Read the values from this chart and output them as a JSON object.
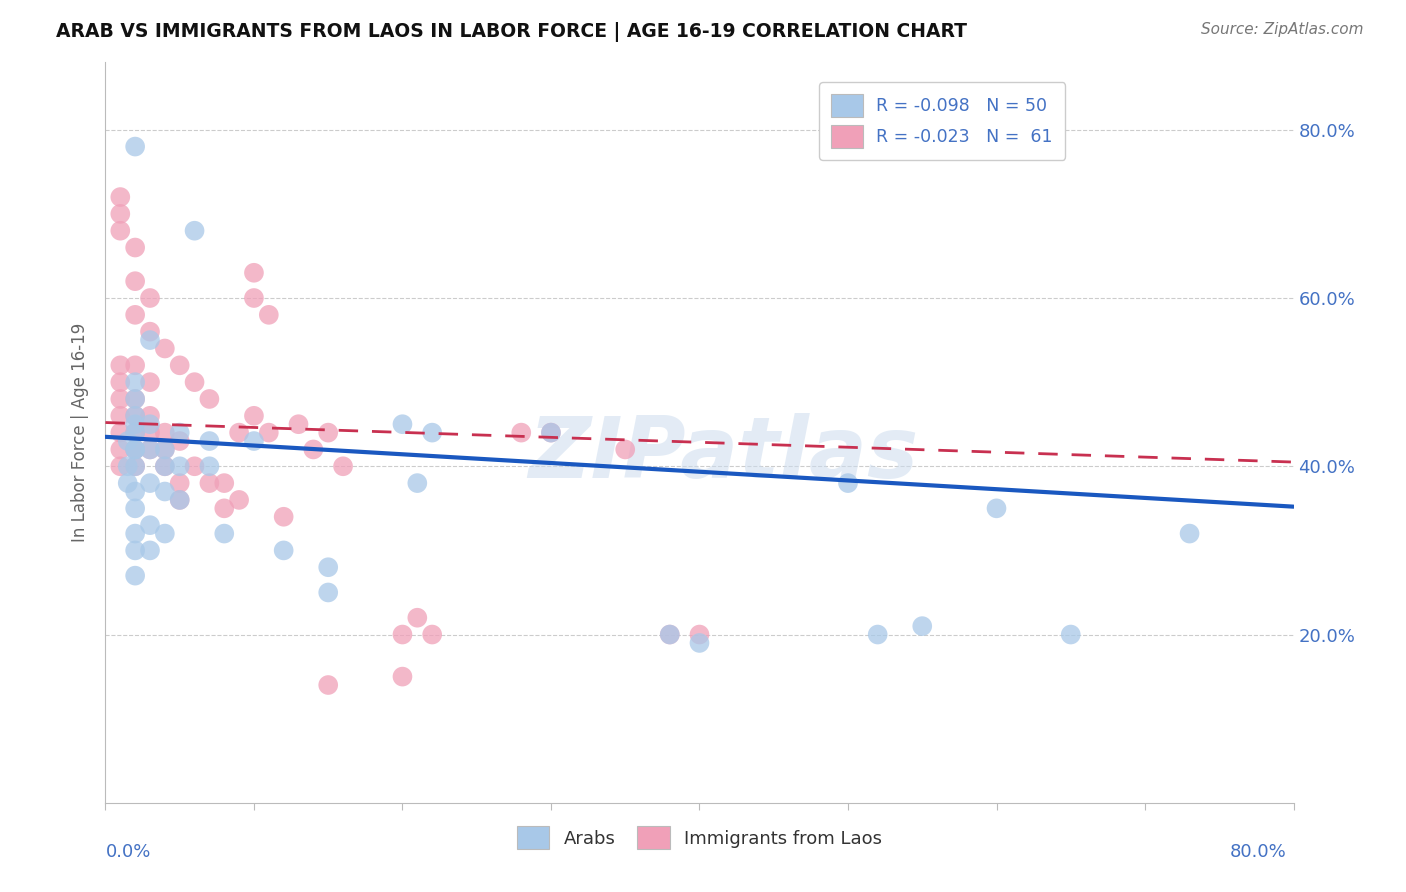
{
  "title": "ARAB VS IMMIGRANTS FROM LAOS IN LABOR FORCE | AGE 16-19 CORRELATION CHART",
  "source": "Source: ZipAtlas.com",
  "ylabel": "In Labor Force | Age 16-19",
  "xlim": [
    0.0,
    0.8
  ],
  "ylim": [
    0.0,
    0.88
  ],
  "watermark": "ZIPatlas",
  "arab_color": "#a8c8e8",
  "laos_color": "#f0a0b8",
  "trendline_arab_color": "#1a58c0",
  "trendline_laos_color": "#c83050",
  "arab_trendline": [
    0.0,
    0.8,
    0.435,
    0.352
  ],
  "laos_trendline": [
    0.0,
    0.8,
    0.452,
    0.405
  ],
  "arab_x": [
    0.02,
    0.02,
    0.02,
    0.02,
    0.02,
    0.02,
    0.02,
    0.02,
    0.02,
    0.03,
    0.03,
    0.03,
    0.03,
    0.04,
    0.04,
    0.04,
    0.05,
    0.05,
    0.06,
    0.07,
    0.07,
    0.08,
    0.1,
    0.12,
    0.15,
    0.15,
    0.2,
    0.21,
    0.22,
    0.3,
    0.38,
    0.4,
    0.5,
    0.52,
    0.55,
    0.6,
    0.65,
    0.73,
    0.015,
    0.015,
    0.015,
    0.02,
    0.02,
    0.03,
    0.04,
    0.05,
    0.02,
    0.03,
    0.02,
    0.02
  ],
  "arab_y": [
    0.42,
    0.4,
    0.37,
    0.35,
    0.32,
    0.3,
    0.27,
    0.45,
    0.5,
    0.42,
    0.38,
    0.33,
    0.3,
    0.42,
    0.37,
    0.32,
    0.44,
    0.36,
    0.68,
    0.43,
    0.4,
    0.32,
    0.43,
    0.3,
    0.28,
    0.25,
    0.45,
    0.38,
    0.44,
    0.44,
    0.2,
    0.19,
    0.38,
    0.2,
    0.21,
    0.35,
    0.2,
    0.32,
    0.43,
    0.4,
    0.38,
    0.46,
    0.44,
    0.45,
    0.4,
    0.4,
    0.78,
    0.55,
    0.42,
    0.48
  ],
  "laos_x": [
    0.01,
    0.01,
    0.01,
    0.01,
    0.01,
    0.01,
    0.01,
    0.02,
    0.02,
    0.02,
    0.02,
    0.02,
    0.02,
    0.03,
    0.03,
    0.03,
    0.03,
    0.04,
    0.04,
    0.04,
    0.05,
    0.05,
    0.06,
    0.07,
    0.08,
    0.09,
    0.1,
    0.11,
    0.12,
    0.13,
    0.14,
    0.15,
    0.16,
    0.2,
    0.21,
    0.28,
    0.3,
    0.35,
    0.38,
    0.01,
    0.01,
    0.01,
    0.02,
    0.02,
    0.02,
    0.03,
    0.03,
    0.04,
    0.05,
    0.06,
    0.07,
    0.08,
    0.09,
    0.1,
    0.15,
    0.2,
    0.22,
    0.4,
    0.1,
    0.11,
    0.05
  ],
  "laos_y": [
    0.46,
    0.44,
    0.42,
    0.4,
    0.48,
    0.5,
    0.52,
    0.44,
    0.42,
    0.4,
    0.48,
    0.52,
    0.46,
    0.44,
    0.42,
    0.46,
    0.5,
    0.44,
    0.4,
    0.42,
    0.43,
    0.38,
    0.4,
    0.38,
    0.35,
    0.44,
    0.6,
    0.58,
    0.34,
    0.45,
    0.42,
    0.44,
    0.4,
    0.2,
    0.22,
    0.44,
    0.44,
    0.42,
    0.2,
    0.68,
    0.72,
    0.7,
    0.66,
    0.62,
    0.58,
    0.6,
    0.56,
    0.54,
    0.52,
    0.5,
    0.48,
    0.38,
    0.36,
    0.63,
    0.14,
    0.15,
    0.2,
    0.2,
    0.46,
    0.44,
    0.36
  ]
}
